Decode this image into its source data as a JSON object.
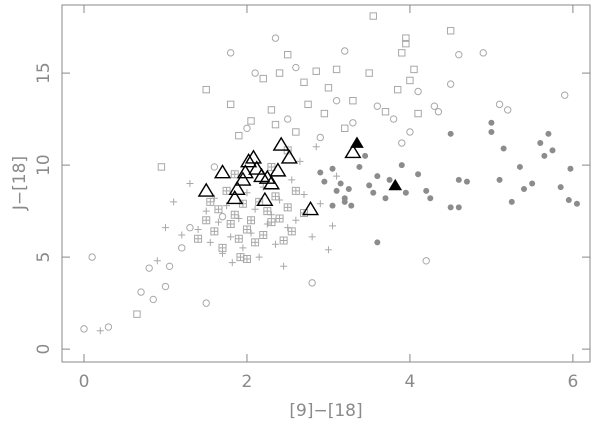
{
  "chart_data": {
    "type": "scatter",
    "x_label": "[9]−[18]",
    "y_label": "J−[18]",
    "xlim": [
      -0.27,
      6.21
    ],
    "ylim": [
      -0.7,
      18.7
    ],
    "xticks": [
      0,
      2,
      4,
      6
    ],
    "yticks": [
      0,
      5,
      10,
      15
    ],
    "series": [
      {
        "marker": "plus",
        "color": "#a8a8a8",
        "x": [
          1.3,
          1.4,
          1.5,
          1.55,
          1.6,
          1.65,
          1.7,
          1.75,
          1.8,
          1.82,
          1.9,
          1.95,
          2.0,
          2.05,
          2.1,
          2.15,
          2.2,
          2.25,
          2.3,
          2.35,
          2.4,
          2.5,
          2.55,
          2.6,
          2.7,
          2.8,
          2.9,
          3.0,
          3.05,
          1.2,
          1.0,
          0.9,
          0.2,
          1.1,
          2.45,
          3.1,
          2.65,
          2.85
        ],
        "values": [
          9.0,
          6.5,
          7.5,
          5.8,
          8.2,
          6.9,
          5.2,
          7.8,
          6.1,
          4.7,
          7.1,
          5.5,
          8.5,
          6.3,
          7.6,
          5.0,
          8.8,
          6.8,
          7.3,
          5.7,
          8.1,
          6.6,
          9.2,
          7.0,
          8.4,
          6.1,
          7.9,
          5.4,
          6.7,
          6.2,
          6.6,
          4.8,
          1.0,
          8.0,
          4.5,
          9.4,
          10.2,
          11.0
        ]
      },
      {
        "marker": "boxplus",
        "color": "#a8a8a8",
        "x": [
          1.4,
          1.5,
          1.6,
          1.65,
          1.7,
          1.75,
          1.8,
          1.85,
          1.9,
          1.92,
          1.95,
          2.0,
          2.05,
          2.1,
          2.15,
          2.2,
          2.25,
          2.3,
          2.35,
          2.4,
          2.45,
          2.5,
          2.55,
          2.6,
          2.7,
          1.55,
          1.85,
          2.0,
          2.3,
          2.5
        ],
        "values": [
          6.0,
          7.0,
          6.4,
          7.6,
          5.5,
          8.6,
          6.8,
          7.3,
          6.0,
          5.0,
          7.9,
          6.5,
          7.0,
          5.8,
          8.0,
          6.2,
          7.5,
          6.9,
          8.3,
          7.1,
          5.9,
          7.7,
          6.4,
          8.6,
          7.4,
          8.0,
          9.5,
          4.9,
          9.9,
          10.8
        ]
      },
      {
        "marker": "circle",
        "color": "#a8a8a8",
        "x": [
          0,
          0.1,
          0.3,
          0.7,
          0.8,
          0.85,
          1.0,
          1.05,
          1.2,
          1.3,
          1.5,
          1.7,
          1.8,
          2.1,
          2.35,
          2.6,
          3.2,
          2.8,
          3.1,
          3.3,
          3.6,
          3.8,
          4.1,
          4.3,
          4.35,
          4.5,
          4.6,
          4.9,
          5.1,
          5.2,
          5.9,
          4.2,
          3.9,
          4.0,
          2.9,
          2.5,
          1.6,
          2.0
        ],
        "values": [
          1.1,
          5.0,
          1.2,
          3.1,
          4.4,
          2.7,
          3.4,
          4.5,
          5.5,
          6.6,
          2.5,
          7.2,
          16.1,
          15.0,
          16.9,
          15.3,
          16.2,
          3.6,
          13.5,
          12.3,
          13.2,
          12.5,
          14.0,
          13.2,
          12.9,
          14.4,
          16.0,
          16.1,
          13.3,
          13.0,
          13.8,
          4.8,
          11.2,
          11.8,
          11.5,
          12.5,
          9.9,
          12.0
        ]
      },
      {
        "marker": "square",
        "color": "#a8a8a8",
        "x": [
          0.65,
          0.95,
          1.5,
          1.8,
          2.05,
          2.2,
          2.4,
          2.5,
          2.7,
          2.85,
          2.95,
          3.0,
          3.1,
          3.3,
          3.5,
          3.55,
          3.85,
          3.9,
          3.95,
          3.95,
          4.0,
          4.05,
          4.1,
          4.5,
          2.3,
          2.6,
          1.9,
          2.35,
          3.2,
          2.75,
          3.7
        ],
        "values": [
          1.9,
          9.9,
          14.1,
          13.3,
          12.4,
          14.7,
          15.0,
          16.0,
          14.5,
          15.1,
          12.8,
          14.2,
          15.2,
          13.5,
          15.0,
          18.1,
          14.1,
          16.1,
          16.9,
          16.6,
          14.6,
          15.2,
          12.8,
          17.3,
          13.0,
          11.8,
          11.6,
          12.2,
          12.0,
          13.3,
          12.9
        ]
      },
      {
        "marker": "dot",
        "color": "#8c8c8c",
        "x": [
          2.9,
          2.95,
          3.05,
          3.1,
          3.15,
          3.2,
          3.25,
          3.28,
          3.38,
          3.45,
          3.5,
          3.55,
          3.6,
          3.6,
          3.7,
          3.75,
          3.9,
          3.95,
          4.1,
          4.2,
          4.25,
          4.5,
          4.5,
          4.6,
          4.6,
          4.7,
          5.0,
          5.0,
          5.1,
          5.15,
          5.25,
          5.35,
          5.4,
          5.5,
          5.6,
          5.65,
          5.7,
          5.75,
          5.85,
          5.95,
          5.97,
          6.05,
          3.2,
          3.05
        ],
        "values": [
          9.6,
          9.1,
          9.8,
          8.6,
          9.0,
          8.2,
          8.7,
          7.8,
          9.9,
          10.5,
          8.9,
          8.5,
          5.8,
          9.4,
          8.2,
          9.2,
          10.0,
          8.5,
          9.5,
          8.6,
          8.2,
          11.7,
          7.7,
          7.7,
          9.2,
          9.1,
          12.3,
          11.8,
          9.2,
          10.9,
          8.0,
          9.9,
          8.7,
          9.0,
          11.2,
          10.5,
          11.7,
          10.8,
          8.8,
          8.1,
          9.8,
          7.9,
          8.0,
          7.8
        ]
      },
      {
        "marker": "triangle",
        "color": "#000000",
        "x": [
          1.5,
          1.7,
          1.85,
          1.88,
          1.95,
          1.98,
          2.02,
          2.08,
          2.12,
          2.18,
          2.22,
          2.25,
          2.3,
          2.38,
          2.42,
          2.52,
          2.78,
          3.3
        ],
        "values": [
          8.6,
          9.6,
          8.2,
          8.7,
          9.2,
          9.6,
          10.2,
          10.4,
          9.8,
          9.4,
          8.1,
          9.3,
          9.0,
          9.7,
          11.1,
          10.4,
          7.6,
          10.7
        ]
      },
      {
        "marker": "filled-triangle",
        "color": "#000000",
        "x": [
          3.35,
          3.82
        ],
        "values": [
          11.2,
          8.9
        ]
      }
    ]
  }
}
